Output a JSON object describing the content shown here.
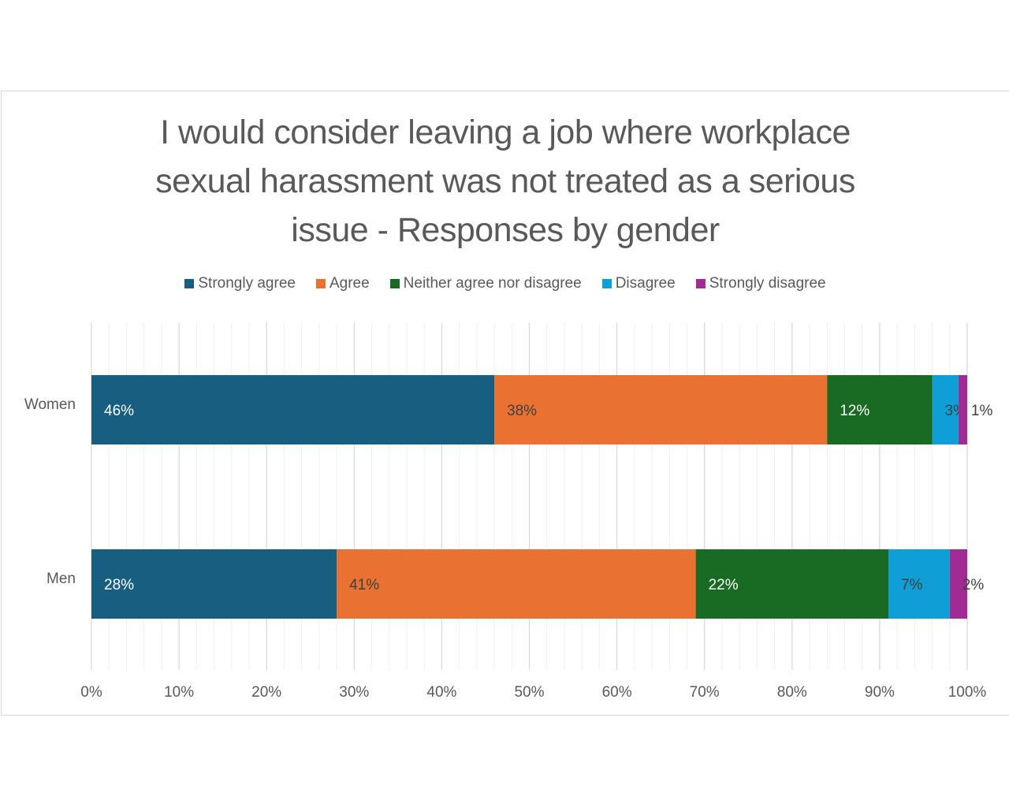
{
  "chart_data": {
    "type": "bar",
    "orientation": "horizontal",
    "stacked": "percent",
    "title": "I would consider leaving a job where workplace sexual harassment was not treated as a serious issue - Responses by gender",
    "title_lines": [
      "I would consider leaving a job where workplace",
      "sexual harassment was not treated as a serious",
      "issue - Responses by gender"
    ],
    "categories": [
      "Women",
      "Men"
    ],
    "series": [
      {
        "name": "Strongly agree",
        "color": "#175e80",
        "values": [
          46,
          28
        ],
        "labels": [
          "46%",
          "28%"
        ],
        "label_color": "#ffffff"
      },
      {
        "name": "Agree",
        "color": "#e97132",
        "values": [
          38,
          41
        ],
        "labels": [
          "38%",
          "41%"
        ],
        "label_color": "#404040"
      },
      {
        "name": "Neither agree nor disagree",
        "color": "#196b24",
        "values": [
          12,
          22
        ],
        "labels": [
          "12%",
          "22%"
        ],
        "label_color": "#ffffff"
      },
      {
        "name": "Disagree",
        "color": "#0f9ed5",
        "values": [
          3,
          7
        ],
        "labels": [
          "3%",
          "7%"
        ],
        "label_color": "#404040"
      },
      {
        "name": "Strongly disagree",
        "color": "#a02b93",
        "values": [
          1,
          2
        ],
        "labels": [
          "1%",
          "2%"
        ],
        "label_color": "#404040"
      }
    ],
    "xlim": [
      0,
      100
    ],
    "x_ticks": [
      "0%",
      "10%",
      "20%",
      "30%",
      "40%",
      "50%",
      "60%",
      "70%",
      "80%",
      "90%",
      "100%"
    ],
    "grid": true,
    "legend_position": "top"
  }
}
